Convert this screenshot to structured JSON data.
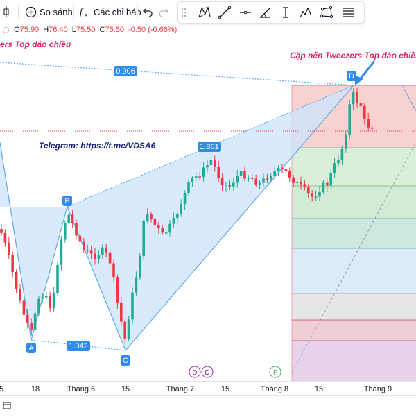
{
  "toolbar": {
    "compare_label": "So sánh",
    "indicators_label": "Các chỉ báo"
  },
  "ohlc": {
    "open_label": "O",
    "open": "75.90",
    "high_label": "H",
    "high": "76.40",
    "low_label": "L",
    "low": "75.50",
    "close_label": "C",
    "close": "75.50",
    "change": "-0.50 (-0.66%)"
  },
  "annotations": {
    "left_title": "ers Top đảo chiều",
    "right_title": "Cặp nến Tweezers Top đảo chiều",
    "telegram": "Telegram: https://t.me/VDSA6"
  },
  "pattern": {
    "point_a": "A",
    "point_b": "B",
    "point_c": "C",
    "point_d": "D",
    "ratio_ac": "1.042",
    "ratio_bd": "1.861",
    "ratio_xd": "0.906"
  },
  "events": {
    "dividend_1": "D",
    "dividend_2": "D",
    "financial": "F"
  },
  "xaxis": {
    "ticks": [
      "5",
      "18",
      "Tháng 6",
      "15",
      "Tháng 7",
      "15",
      "Tháng 8",
      "15",
      "Tháng 9"
    ]
  },
  "colors": {
    "up": "#22ab94",
    "down": "#f23645",
    "pattern_fill": "#cfe5fb",
    "pattern_line": "#5ba8ee",
    "fib_red": "#f7c9c9",
    "fib_green": "#d7eedc",
    "annotation_pink": "#e91e63",
    "annotation_navy": "#1a237e",
    "label_blue": "#2f8ceb"
  }
}
